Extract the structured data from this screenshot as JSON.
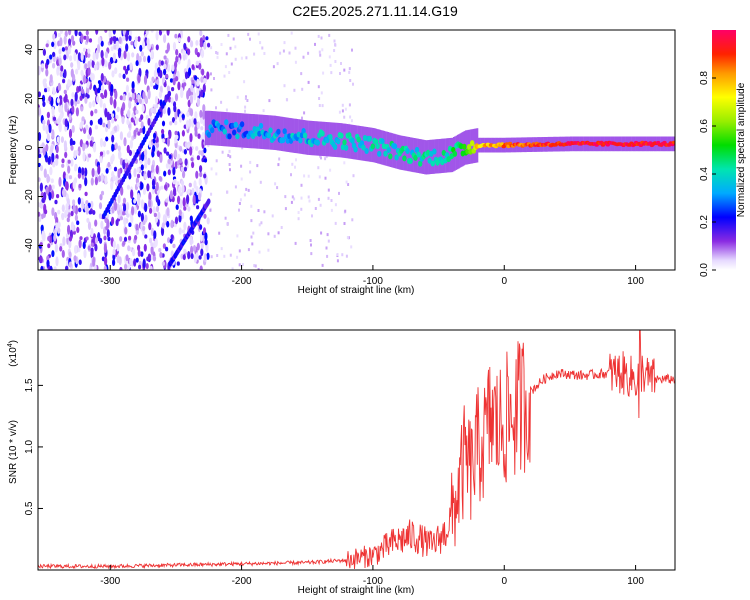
{
  "figure_title": "C2E5.2025.271.11.14.G19",
  "colorbar": {
    "label": "Normalized spectral amplitude",
    "ticks": [
      "0.0",
      "0.2",
      "0.4",
      "0.6",
      "0.8"
    ],
    "tick_values": [
      0.0,
      0.2,
      0.4,
      0.6,
      0.8
    ],
    "range": [
      0,
      1
    ]
  },
  "chart_data": [
    {
      "type": "heatmap",
      "title": "",
      "xlabel": "Height of straight line (km)",
      "ylabel": "Frequency (Hz)",
      "xlim": [
        -355,
        130
      ],
      "ylim": [
        -50,
        48
      ],
      "xticks": [
        -300,
        -200,
        -100,
        0,
        100
      ],
      "xtick_labels": [
        "-300",
        "-200",
        "-100",
        "0",
        "100"
      ],
      "yticks": [
        -40,
        -20,
        0,
        20,
        40
      ],
      "ytick_labels": [
        "-40",
        "-20",
        "0",
        "20",
        "40"
      ],
      "ridge": {
        "description_points_x": [
          -225,
          -200,
          -175,
          -150,
          -125,
          -100,
          -80,
          -60,
          -40,
          -30,
          -20,
          0,
          50,
          130
        ],
        "frequency_hz": [
          8,
          7,
          6,
          4,
          3,
          1,
          -2,
          -4,
          -3,
          0,
          1,
          1,
          1.5,
          1.5
        ],
        "amplitude": [
          0.3,
          0.3,
          0.35,
          0.35,
          0.4,
          0.4,
          0.4,
          0.4,
          0.45,
          0.55,
          0.75,
          0.85,
          0.95,
          0.95
        ]
      },
      "noise_region_km": [
        -355,
        -225
      ],
      "diagonal_tracks": [
        {
          "x": [
            -305,
            -255
          ],
          "y": [
            -28,
            22
          ]
        },
        {
          "x": [
            -255,
            -225
          ],
          "y": [
            -48,
            -22
          ]
        }
      ]
    },
    {
      "type": "line",
      "title": "",
      "xlabel": "Height of straight line (km)",
      "ylabel": "SNR (10 * v/v)",
      "y_multiplier": "(x10",
      "y_multiplier_exp": "4",
      "y_multiplier_close": ")",
      "xlim": [
        -355,
        130
      ],
      "ylim": [
        0,
        1.95
      ],
      "xticks": [
        -300,
        -200,
        -100,
        0,
        100
      ],
      "xtick_labels": [
        "-300",
        "-200",
        "-100",
        "0",
        "100"
      ],
      "yticks": [
        0.5,
        1.0,
        1.5
      ],
      "ytick_labels": [
        "0.5",
        "1.0",
        "1.5"
      ],
      "series": [
        {
          "name": "SNR",
          "color": "#ee3333",
          "x": [
            -355,
            -300,
            -250,
            -200,
            -150,
            -120,
            -100,
            -85,
            -70,
            -55,
            -45,
            -38,
            -34,
            -30,
            -25,
            -20,
            -15,
            -10,
            -5,
            0,
            10,
            20,
            30,
            40,
            60,
            80,
            90,
            100,
            105,
            110,
            130
          ],
          "y": [
            0.03,
            0.03,
            0.04,
            0.05,
            0.06,
            0.08,
            0.12,
            0.22,
            0.28,
            0.2,
            0.3,
            0.5,
            0.7,
            0.9,
            0.8,
            1.0,
            1.05,
            1.25,
            1.15,
            1.2,
            1.3,
            1.45,
            1.55,
            1.6,
            1.58,
            1.6,
            1.6,
            1.55,
            1.62,
            1.55,
            1.55
          ]
        }
      ]
    }
  ]
}
